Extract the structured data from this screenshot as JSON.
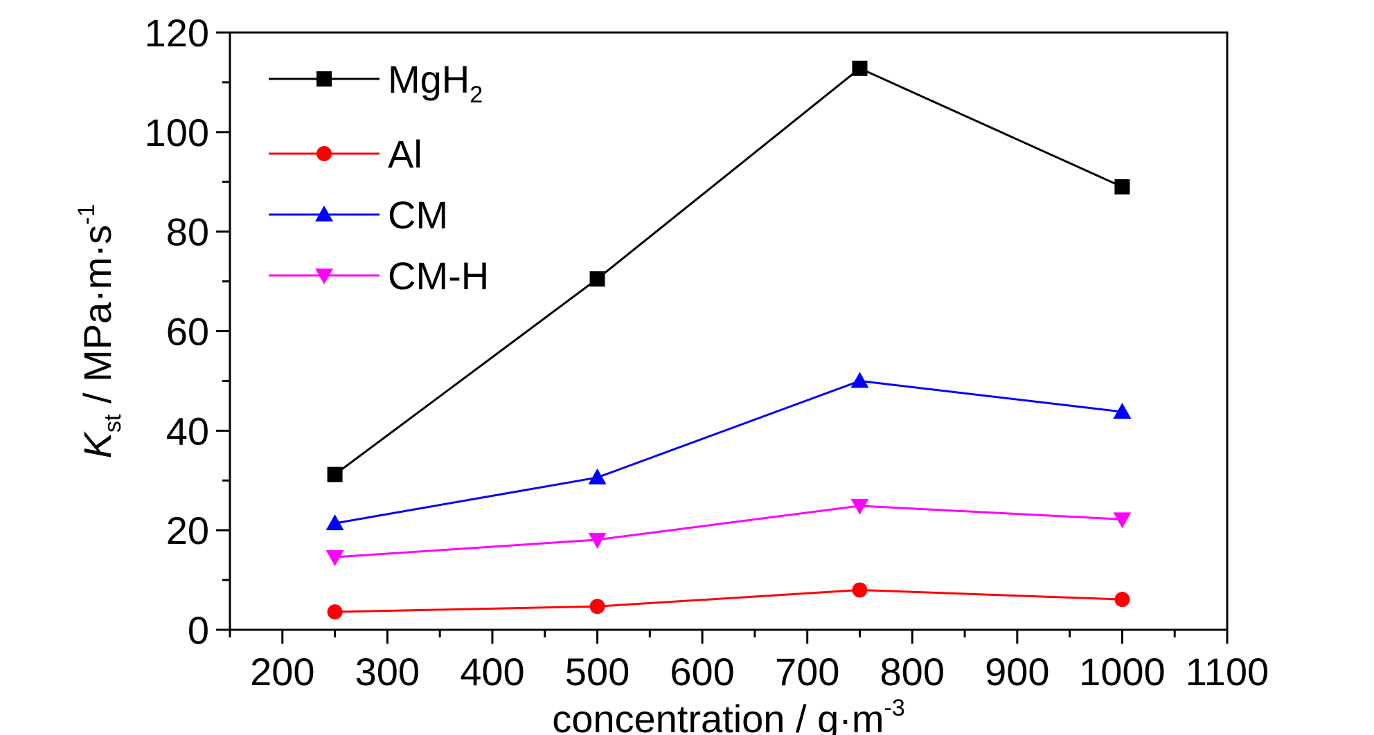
{
  "chart_data": {
    "type": "line",
    "xlabel": "concentration / g·m",
    "xlabel_sup": "-3",
    "ylabel_main": "K",
    "ylabel_sub": "st",
    "ylabel_unit": " / MPa·m·s",
    "ylabel_sup": "-1",
    "xlim": [
      150,
      1100
    ],
    "ylim": [
      0,
      120
    ],
    "x_ticks": [
      200,
      300,
      400,
      500,
      600,
      700,
      800,
      900,
      1000,
      1100
    ],
    "y_ticks": [
      0,
      20,
      40,
      60,
      80,
      100,
      120
    ],
    "grid": false,
    "legend_position": "top-left",
    "x": [
      250,
      500,
      750,
      1000
    ],
    "series": [
      {
        "name": "MgH",
        "name_sub": "2",
        "marker": "square",
        "color": "#000000",
        "values": [
          31.2,
          70.5,
          112.8,
          89.0
        ]
      },
      {
        "name": "Al",
        "name_sub": "",
        "marker": "circle",
        "color": "#ff0000",
        "values": [
          3.6,
          4.7,
          8.0,
          6.1
        ]
      },
      {
        "name": "CM",
        "name_sub": "",
        "marker": "triangle-up",
        "color": "#0000ff",
        "values": [
          21.4,
          30.6,
          50.0,
          43.8
        ]
      },
      {
        "name": "CM-H",
        "name_sub": "",
        "marker": "triangle-down",
        "color": "#ff00ff",
        "values": [
          14.6,
          18.1,
          24.9,
          22.2
        ]
      }
    ]
  }
}
